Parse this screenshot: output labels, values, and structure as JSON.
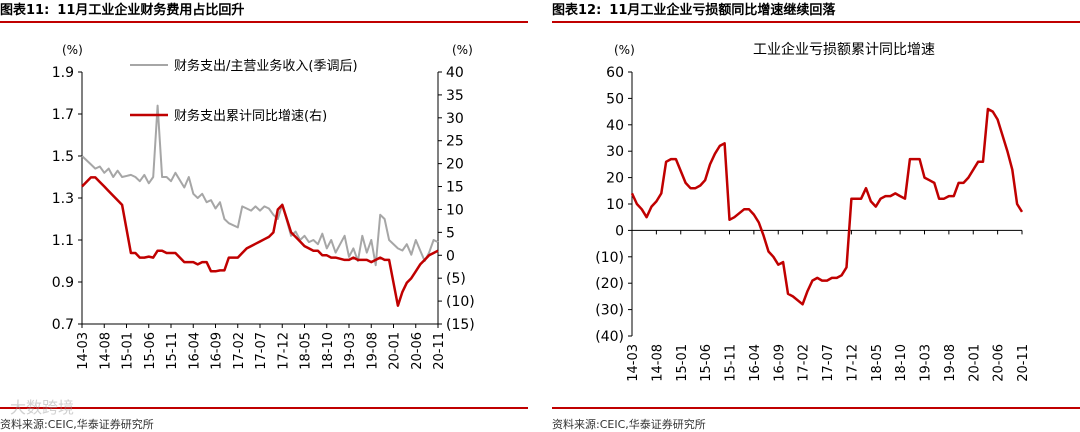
{
  "colors": {
    "accent": "#C00000",
    "gray": "#A6A6A6",
    "axis": "#000000"
  },
  "left": {
    "fig_label": "图表11:",
    "fig_title": "11月工业企业财务费用占比回升",
    "source": "资料来源:CEIC,华泰证券研究所",
    "unit_left": "(%)",
    "unit_right": "(%)"
  },
  "right": {
    "fig_label": "图表12:",
    "fig_title": "11月工业企业亏损额同比增速继续回落",
    "source": "资料来源:CEIC,华泰证券研究所",
    "unit_left": "(%)"
  },
  "watermark": "大数跨境",
  "chart_data": [
    {
      "type": "line",
      "title": "",
      "x_tick_labels": [
        "14-03",
        "14-08",
        "15-01",
        "15-06",
        "15-11",
        "16-04",
        "16-09",
        "17-02",
        "17-07",
        "17-12",
        "18-05",
        "18-10",
        "19-03",
        "19-08",
        "20-01",
        "20-06",
        "20-11"
      ],
      "x": [
        "14-03",
        "14-05",
        "14-06",
        "14-07",
        "14-08",
        "14-09",
        "14-10",
        "14-11",
        "14-12",
        "15-02",
        "15-03",
        "15-04",
        "15-05",
        "15-06",
        "15-07",
        "15-08",
        "15-09",
        "15-10",
        "15-11",
        "15-12",
        "16-02",
        "16-03",
        "16-04",
        "16-05",
        "16-06",
        "16-07",
        "16-08",
        "16-09",
        "16-10",
        "16-11",
        "16-12",
        "17-02",
        "17-03",
        "17-04",
        "17-05",
        "17-06",
        "17-07",
        "17-08",
        "17-09",
        "17-10",
        "17-11",
        "17-12",
        "18-02",
        "18-03",
        "18-04",
        "18-05",
        "18-06",
        "18-07",
        "18-08",
        "18-09",
        "18-10",
        "18-11",
        "18-12",
        "19-02",
        "19-03",
        "19-04",
        "19-05",
        "19-06",
        "19-07",
        "19-08",
        "19-09",
        "19-10",
        "19-11",
        "19-12",
        "20-02",
        "20-03",
        "20-04",
        "20-05",
        "20-06",
        "20-07",
        "20-08",
        "20-09",
        "20-10",
        "20-11"
      ],
      "left_axis": {
        "ylim": [
          0.7,
          1.9
        ],
        "ticks": [
          "0.7",
          "0.9",
          "1.1",
          "1.3",
          "1.5",
          "1.7",
          "1.9"
        ]
      },
      "right_axis": {
        "ylim": [
          -15,
          40
        ],
        "ticks": [
          "(15)",
          "(10)",
          "(5)",
          "0",
          "5",
          "10",
          "15",
          "20",
          "25",
          "30",
          "35",
          "40"
        ]
      },
      "series": [
        {
          "name": "财务支出/主营业务收入(季调后)",
          "axis": "left",
          "color": "#A6A6A6",
          "values": [
            1.5,
            1.46,
            1.44,
            1.45,
            1.42,
            1.44,
            1.4,
            1.43,
            1.4,
            1.41,
            1.4,
            1.38,
            1.41,
            1.37,
            1.4,
            1.74,
            1.4,
            1.4,
            1.38,
            1.42,
            1.35,
            1.4,
            1.32,
            1.3,
            1.32,
            1.28,
            1.29,
            1.25,
            1.28,
            1.2,
            1.18,
            1.16,
            1.26,
            1.25,
            1.24,
            1.26,
            1.24,
            1.26,
            1.25,
            1.22,
            1.2,
            1.27,
            1.12,
            1.14,
            1.1,
            1.12,
            1.09,
            1.1,
            1.08,
            1.13,
            1.06,
            1.1,
            1.04,
            1.12,
            1.02,
            1.06,
            1.0,
            1.12,
            1.04,
            1.1,
            0.98,
            1.22,
            1.2,
            1.1,
            1.06,
            1.05,
            1.08,
            1.03,
            1.1,
            1.05,
            1.0,
            1.04,
            1.1,
            1.09
          ]
        },
        {
          "name": "财务支出累计同比增速(右)",
          "axis": "right",
          "color": "#C00000",
          "values": [
            15,
            17,
            17,
            16,
            15,
            14,
            13,
            12,
            11,
            0.5,
            0.5,
            -0.5,
            -0.5,
            -0.3,
            -0.5,
            1,
            1,
            0.5,
            0.5,
            0.5,
            -1.5,
            -1.5,
            -1.5,
            -2,
            -1.5,
            -1.5,
            -3.5,
            -3.5,
            -3.3,
            -3.3,
            -0.5,
            -0.5,
            0.5,
            1.5,
            2,
            2.5,
            3,
            3.5,
            4,
            5,
            10,
            11,
            5,
            4,
            3,
            2,
            1.5,
            1,
            1,
            0,
            0,
            -0.5,
            -0.5,
            -1,
            -1,
            -0.5,
            -1,
            -1,
            -1,
            -1.5,
            -1,
            -0.5,
            -1,
            -1,
            -11,
            -8,
            -6,
            -5,
            -3.5,
            -2,
            -1,
            0,
            0.5,
            1
          ]
        }
      ],
      "legend": "top"
    },
    {
      "type": "line",
      "title": "工业企业亏损额累计同比增速",
      "x_tick_labels": [
        "14-03",
        "14-08",
        "15-01",
        "15-06",
        "15-11",
        "16-04",
        "16-09",
        "17-02",
        "17-07",
        "17-12",
        "18-05",
        "18-10",
        "19-03",
        "19-08",
        "20-01",
        "20-06",
        "20-11"
      ],
      "x": [
        "14-03",
        "14-04",
        "14-05",
        "14-06",
        "14-07",
        "14-08",
        "14-09",
        "14-10",
        "14-11",
        "14-12",
        "15-02",
        "15-03",
        "15-04",
        "15-05",
        "15-06",
        "15-07",
        "15-08",
        "15-09",
        "15-10",
        "15-11",
        "15-12",
        "16-02",
        "16-03",
        "16-04",
        "16-05",
        "16-06",
        "16-07",
        "16-08",
        "16-09",
        "16-10",
        "16-11",
        "16-12",
        "17-02",
        "17-03",
        "17-04",
        "17-05",
        "17-06",
        "17-07",
        "17-08",
        "17-09",
        "17-10",
        "17-11",
        "17-12",
        "18-02",
        "18-03",
        "18-04",
        "18-05",
        "18-06",
        "18-07",
        "18-08",
        "18-09",
        "18-10",
        "18-11",
        "18-12",
        "19-02",
        "19-03",
        "19-04",
        "19-05",
        "19-06",
        "19-07",
        "19-08",
        "19-09",
        "19-10",
        "19-11",
        "19-12",
        "20-02",
        "20-03",
        "20-04",
        "20-05",
        "20-06",
        "20-07",
        "20-08",
        "20-09",
        "20-10",
        "20-11"
      ],
      "ylim": [
        -40,
        60
      ],
      "y_ticks": [
        "(40)",
        "(30)",
        "(20)",
        "(10)",
        "0",
        "10",
        "20",
        "30",
        "40",
        "50",
        "60"
      ],
      "series": [
        {
          "name": "",
          "color": "#C00000",
          "values": [
            14,
            10,
            8,
            5,
            9,
            11,
            14,
            26,
            27,
            27,
            18,
            16,
            16,
            17,
            19,
            25,
            29,
            32,
            33,
            4,
            5,
            8,
            8,
            6,
            3,
            -2,
            -8,
            -10,
            -13,
            -12,
            -24,
            -25,
            -28,
            -23,
            -19,
            -18,
            -19,
            -19,
            -18,
            -18,
            -17,
            -14,
            12,
            12,
            16,
            11,
            9,
            12,
            13,
            13,
            14,
            13,
            12,
            27,
            27,
            20,
            19,
            18,
            12,
            12,
            13,
            13,
            18,
            18,
            20,
            26,
            26,
            46,
            45,
            42,
            36,
            30,
            23,
            10,
            7
          ]
        }
      ]
    }
  ]
}
